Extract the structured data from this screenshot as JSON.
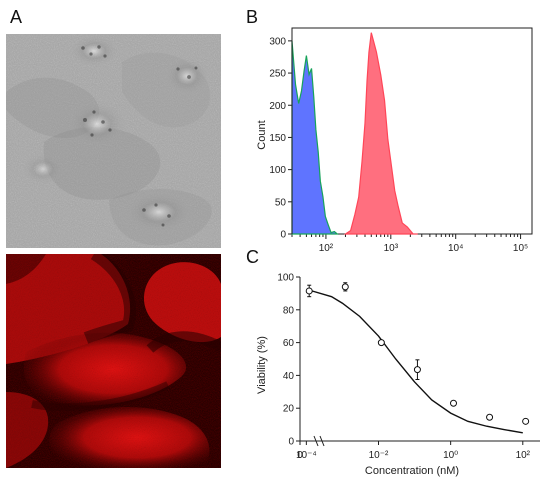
{
  "figure": {
    "panels": {
      "a": {
        "letter": "A"
      },
      "b": {
        "letter": "B"
      },
      "c": {
        "letter": "C"
      }
    },
    "colors": {
      "histogram_blue": "#5f74ff",
      "histogram_red": "#ff6f7f",
      "histogram_green_line": "#17a35a",
      "fluorescence_red": "#c71616",
      "brightfield_gray": "#a4a4a4"
    }
  },
  "chart_data": [
    {
      "type": "area",
      "panel": "B",
      "ylabel": "Count",
      "xscale": "log",
      "xlim": [
        30,
        150000
      ],
      "ylim": [
        0,
        320
      ],
      "x_tick_labels": [
        "10²",
        "10³",
        "10⁴",
        "10⁵"
      ],
      "y_tick_labels": [
        "0",
        "50",
        "100",
        "150",
        "200",
        "250",
        "300"
      ],
      "series": [
        {
          "x": [
            30,
            34,
            38,
            42,
            46,
            50,
            55,
            60,
            65,
            70,
            76,
            82,
            90,
            98,
            108,
            120,
            135,
            150
          ],
          "values": [
            300,
            235,
            200,
            225,
            250,
            280,
            245,
            260,
            210,
            165,
            125,
            85,
            55,
            30,
            12,
            5,
            1,
            0
          ]
        },
        {
          "x": [
            200,
            240,
            280,
            320,
            360,
            400,
            430,
            460,
            500,
            550,
            600,
            700,
            800,
            900,
            1000,
            1150,
            1300,
            1500,
            1800,
            2200,
            2600
          ],
          "values": [
            0,
            8,
            28,
            60,
            110,
            175,
            235,
            285,
            310,
            300,
            280,
            250,
            205,
            150,
            110,
            70,
            40,
            20,
            8,
            3,
            0
          ]
        }
      ]
    },
    {
      "type": "scatter",
      "panel": "C",
      "xlabel": "Concentration (nM)",
      "ylabel": "Viability (%)",
      "xscale": "log",
      "xlim": [
        4e-05,
        300
      ],
      "ylim": [
        0,
        100
      ],
      "x_tick_labels": [
        "0",
        "10⁻⁴",
        "10⁻²",
        "10⁰",
        "10²"
      ],
      "y_tick_labels": [
        "0",
        "20",
        "40",
        "60",
        "80",
        "100"
      ],
      "points": [
        {
          "x": 0.00012,
          "y": 91.5,
          "err": 3.5
        },
        {
          "x": 0.0012,
          "y": 94,
          "err": 2.5
        },
        {
          "x": 0.012,
          "y": 60,
          "err": 0
        },
        {
          "x": 0.12,
          "y": 43.5,
          "err": 6
        },
        {
          "x": 1.2,
          "y": 23,
          "err": 0
        },
        {
          "x": 12,
          "y": 14.5,
          "err": 0
        },
        {
          "x": 120,
          "y": 12,
          "err": 0
        }
      ],
      "fit": {
        "x": [
          0.00012,
          0.0005,
          0.001,
          0.003,
          0.01,
          0.03,
          0.1,
          0.3,
          1,
          3,
          10,
          30,
          100
        ],
        "values": [
          92,
          88,
          84,
          76,
          64,
          50,
          36,
          25,
          17,
          12,
          9,
          7,
          5
        ]
      }
    }
  ]
}
